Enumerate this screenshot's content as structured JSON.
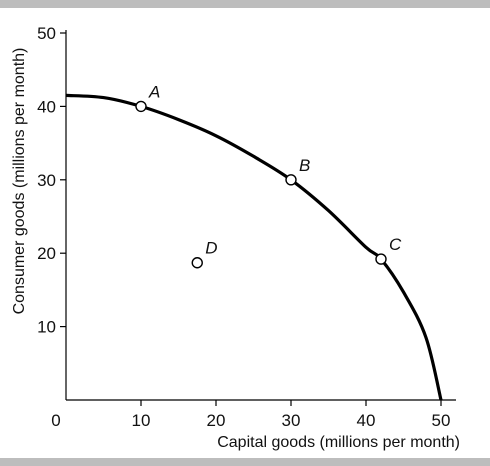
{
  "chart_data": {
    "type": "line",
    "title": "",
    "xlabel": "Capital goods (millions per month)",
    "ylabel": "Consumer goods (millions  per month)",
    "xlim": [
      0,
      50
    ],
    "ylim": [
      0,
      50
    ],
    "x_ticks": [
      "0",
      "10",
      "20",
      "30",
      "40",
      "50"
    ],
    "y_ticks": [
      "10",
      "20",
      "30",
      "40",
      "50"
    ],
    "grid": false,
    "legend": "none",
    "series": [
      {
        "x": [
          0,
          5,
          10,
          15,
          20,
          25,
          30,
          35,
          40,
          42,
          45,
          48,
          50
        ],
        "y": [
          41.5,
          41.2,
          40,
          38.2,
          36,
          33.2,
          30,
          25.8,
          20.8,
          19.2,
          14.7,
          8.5,
          0
        ]
      }
    ],
    "points": [
      {
        "label": "A",
        "x": 10,
        "y": 40,
        "marker": "open"
      },
      {
        "label": "B",
        "x": 30,
        "y": 30,
        "marker": "open"
      },
      {
        "label": "C",
        "x": 42,
        "y": 19.2,
        "marker": "open"
      },
      {
        "label": "D",
        "x": 17.5,
        "y": 18.7,
        "marker": "open"
      }
    ],
    "colors": {
      "curve": "#000000",
      "marker_fill": "#ffffff",
      "text": "#111111"
    }
  }
}
